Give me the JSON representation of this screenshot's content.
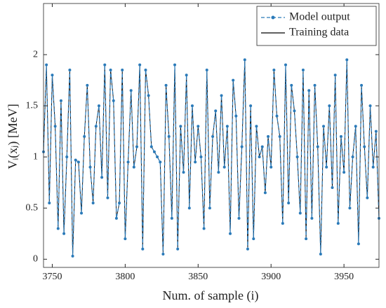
{
  "chart_data": {
    "type": "line",
    "xlabel": "Num. of sample (i)",
    "ylabel": "Vᵢ(xⱼ) [MeV]",
    "x": [
      3744,
      3746,
      3748,
      3750,
      3752,
      3754,
      3756,
      3758,
      3760,
      3762,
      3764,
      3766,
      3768,
      3770,
      3772,
      3774,
      3776,
      3778,
      3780,
      3782,
      3784,
      3786,
      3788,
      3790,
      3792,
      3794,
      3796,
      3798,
      3800,
      3802,
      3804,
      3806,
      3808,
      3810,
      3812,
      3814,
      3816,
      3818,
      3820,
      3822,
      3824,
      3826,
      3828,
      3830,
      3832,
      3834,
      3836,
      3838,
      3840,
      3842,
      3844,
      3846,
      3848,
      3850,
      3852,
      3854,
      3856,
      3858,
      3860,
      3862,
      3864,
      3866,
      3868,
      3870,
      3872,
      3874,
      3876,
      3878,
      3880,
      3882,
      3884,
      3886,
      3888,
      3890,
      3892,
      3894,
      3896,
      3898,
      3900,
      3902,
      3904,
      3906,
      3908,
      3910,
      3912,
      3914,
      3916,
      3918,
      3920,
      3922,
      3924,
      3926,
      3928,
      3930,
      3932,
      3934,
      3936,
      3938,
      3940,
      3942,
      3944,
      3946,
      3948,
      3950,
      3952,
      3954,
      3956,
      3958,
      3960,
      3962,
      3964,
      3966,
      3968,
      3970,
      3972,
      3974
    ],
    "series": [
      {
        "name": "Model output",
        "color": "#2a7ab9",
        "dashed": true,
        "markers": true,
        "values": [
          1.05,
          1.9,
          0.55,
          1.8,
          1.3,
          0.3,
          1.55,
          0.25,
          1.0,
          1.85,
          0.03,
          0.97,
          0.95,
          0.45,
          1.2,
          1.7,
          0.9,
          0.55,
          1.3,
          1.5,
          0.8,
          1.9,
          0.6,
          1.85,
          1.55,
          0.4,
          0.55,
          1.85,
          0.2,
          0.95,
          1.65,
          0.9,
          1.1,
          1.9,
          0.1,
          1.85,
          1.6,
          1.1,
          1.05,
          1.0,
          0.95,
          0.05,
          1.7,
          1.2,
          0.4,
          1.9,
          0.1,
          1.3,
          0.85,
          1.8,
          0.5,
          1.5,
          0.95,
          1.3,
          1.0,
          0.3,
          1.85,
          0.5,
          1.2,
          1.45,
          0.85,
          1.6,
          0.9,
          1.3,
          0.25,
          1.75,
          1.4,
          0.4,
          1.1,
          1.95,
          0.1,
          1.5,
          0.2,
          1.3,
          1.0,
          1.1,
          0.65,
          1.2,
          0.9,
          1.85,
          1.4,
          1.2,
          0.35,
          1.9,
          0.55,
          1.7,
          1.45,
          1.0,
          0.45,
          1.85,
          0.2,
          1.65,
          0.4,
          1.7,
          1.1,
          0.05,
          1.3,
          0.9,
          1.5,
          0.7,
          1.8,
          0.35,
          1.2,
          0.85,
          1.95,
          0.5,
          1.0,
          1.3,
          0.15,
          1.7,
          1.1,
          0.6,
          1.5,
          0.9,
          1.25,
          0.4
        ]
      },
      {
        "name": "Training data",
        "color": "#000000",
        "dashed": false,
        "markers": false,
        "values": [
          1.05,
          1.9,
          0.55,
          1.8,
          1.3,
          0.3,
          1.55,
          0.25,
          1.0,
          1.85,
          0.03,
          0.97,
          0.95,
          0.45,
          1.2,
          1.7,
          0.9,
          0.55,
          1.3,
          1.5,
          0.8,
          1.9,
          0.6,
          1.85,
          1.55,
          0.4,
          0.55,
          1.85,
          0.2,
          0.95,
          1.65,
          0.9,
          1.1,
          1.9,
          0.1,
          1.85,
          1.6,
          1.1,
          1.05,
          1.0,
          0.95,
          0.05,
          1.7,
          1.2,
          0.4,
          1.9,
          0.1,
          1.3,
          0.85,
          1.8,
          0.5,
          1.5,
          0.95,
          1.3,
          1.0,
          0.3,
          1.85,
          0.5,
          1.2,
          1.45,
          0.85,
          1.6,
          0.9,
          1.3,
          0.25,
          1.75,
          1.4,
          0.4,
          1.1,
          1.95,
          0.1,
          1.5,
          0.2,
          1.3,
          1.0,
          1.1,
          0.65,
          1.2,
          0.9,
          1.85,
          1.4,
          1.2,
          0.35,
          1.9,
          0.55,
          1.7,
          1.45,
          1.0,
          0.45,
          1.85,
          0.2,
          1.65,
          0.4,
          1.7,
          1.1,
          0.05,
          1.3,
          0.9,
          1.5,
          0.7,
          1.8,
          0.35,
          1.2,
          0.85,
          1.95,
          0.5,
          1.0,
          1.3,
          0.15,
          1.7,
          1.1,
          0.6,
          1.5,
          0.9,
          1.25,
          0.4
        ]
      }
    ],
    "xlim": [
      3744,
      3974
    ],
    "xticks": [
      3750,
      3800,
      3850,
      3900,
      3950
    ],
    "ylim": [
      -0.08,
      2.5
    ],
    "yticks": [
      0,
      0.5,
      1,
      1.5,
      2
    ],
    "grid": false,
    "legend": "upper right"
  }
}
